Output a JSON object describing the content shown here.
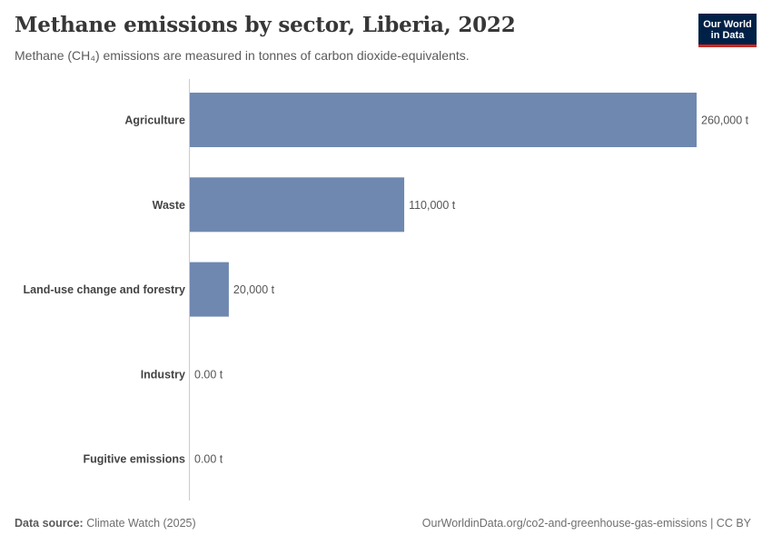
{
  "header": {
    "title": "Methane emissions by sector, Liberia, 2022",
    "subtitle": "Methane (CH₄) emissions are measured in tonnes of carbon dioxide-equivalents."
  },
  "logo": {
    "line1": "Our World",
    "line2": "in Data"
  },
  "footer": {
    "source_label": "Data source:",
    "source_value": "Climate Watch (2025)",
    "url": "OurWorldinData.org/co2-and-greenhouse-gas-emissions | CC BY"
  },
  "colors": {
    "bar": "#6f88b0",
    "axis": "#cccccc",
    "logo_bg": "#002147",
    "logo_accent": "#ce261e"
  },
  "chart_data": {
    "type": "bar",
    "orientation": "horizontal",
    "categories": [
      "Agriculture",
      "Waste",
      "Land-use change and forestry",
      "Industry",
      "Fugitive emissions"
    ],
    "values": [
      260000,
      110000,
      20000,
      0,
      0
    ],
    "value_labels": [
      "260,000 t",
      "110,000 t",
      "20,000 t",
      "0.00 t",
      "0.00 t"
    ],
    "xlim": [
      0,
      260000
    ],
    "grid": false,
    "legend": "none"
  }
}
